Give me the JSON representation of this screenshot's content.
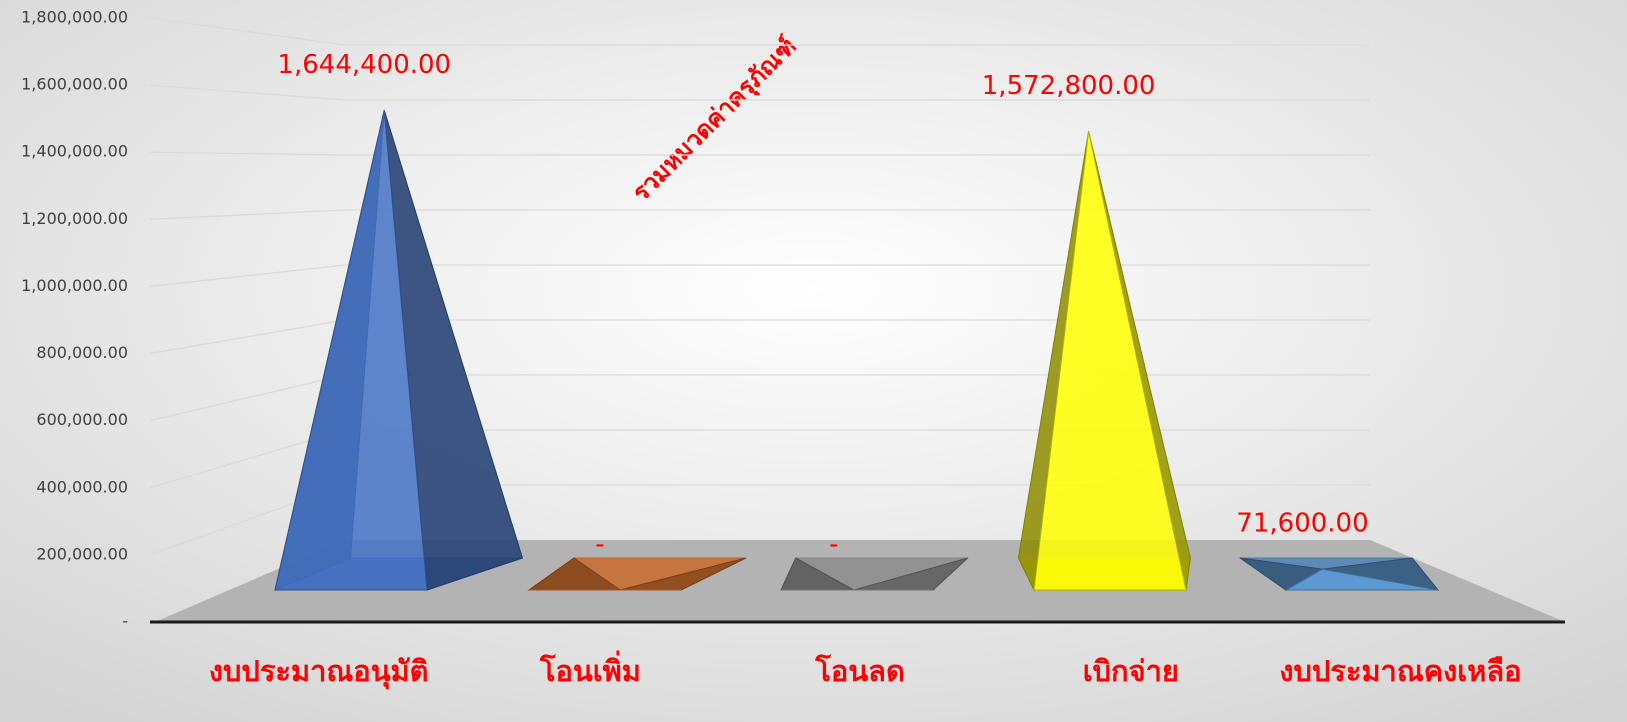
{
  "chart_data": {
    "type": "pyramid3d",
    "title": "รวมหมวดค่าครุภัณฑ์",
    "categories": [
      "งบประมาณอนุมัติ",
      "โอนเพิ่ม",
      "โอนลด",
      "เบิกจ่าย",
      "งบประมาณคงเหลือ"
    ],
    "values": [
      1644400,
      0,
      0,
      1572800,
      71600
    ],
    "value_labels": [
      "1,644,400.00",
      "-",
      "-",
      "1,572,800.00",
      "71,600.00"
    ],
    "colors": [
      "#4472c4",
      "#ed7d31",
      "#a5a5a5",
      "#ffff00",
      "#5b9bd5"
    ],
    "ylim": [
      0,
      1800000
    ],
    "yticks": [
      {
        "value": 0,
        "label": "-"
      },
      {
        "value": 200000,
        "label": "200,000.00"
      },
      {
        "value": 400000,
        "label": "400,000.00"
      },
      {
        "value": 600000,
        "label": "600,000.00"
      },
      {
        "value": 800000,
        "label": "800,000.00"
      },
      {
        "value": 1000000,
        "label": "1,000,000.00"
      },
      {
        "value": 1200000,
        "label": "1,200,000.00"
      },
      {
        "value": 1400000,
        "label": "1,400,000.00"
      },
      {
        "value": 1600000,
        "label": "1,600,000.00"
      },
      {
        "value": 1800000,
        "label": "1,800,000.00"
      }
    ],
    "grid": true
  }
}
